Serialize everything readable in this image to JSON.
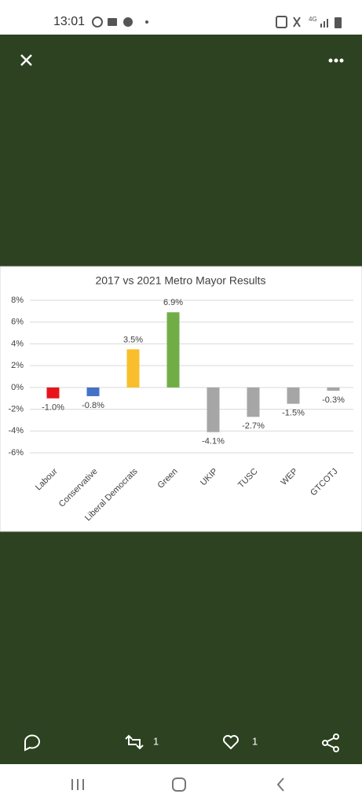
{
  "status_bar": {
    "time": "13:01"
  },
  "chart_data": {
    "type": "bar",
    "title": "2017 vs 2021 Metro Mayor Results",
    "categories": [
      "Labour",
      "Conservative",
      "Liberal Democrats",
      "Green",
      "UKIP",
      "TUSC",
      "WEP",
      "GTCOTJ"
    ],
    "values": [
      -1.0,
      -0.8,
      3.5,
      6.9,
      -4.1,
      -2.7,
      -1.5,
      -0.3
    ],
    "value_labels": [
      "-1.0%",
      "-0.8%",
      "3.5%",
      "6.9%",
      "-4.1%",
      "-2.7%",
      "-1.5%",
      "-0.3%"
    ],
    "colors": [
      "#e8141c",
      "#4472c4",
      "#f9be2b",
      "#70ad47",
      "#a6a6a6",
      "#a6a6a6",
      "#a6a6a6",
      "#a6a6a6"
    ],
    "ylim": [
      -6,
      8
    ],
    "yticks": [
      {
        "value": -6,
        "label": "-6%"
      },
      {
        "value": -4,
        "label": "-4%"
      },
      {
        "value": -2,
        "label": "-2%"
      },
      {
        "value": 0,
        "label": "0%"
      },
      {
        "value": 2,
        "label": "2%"
      },
      {
        "value": 4,
        "label": "4%"
      },
      {
        "value": 6,
        "label": "6%"
      },
      {
        "value": 8,
        "label": "8%"
      }
    ],
    "grid": true
  },
  "actions": {
    "retweets": 1,
    "likes": 1
  }
}
